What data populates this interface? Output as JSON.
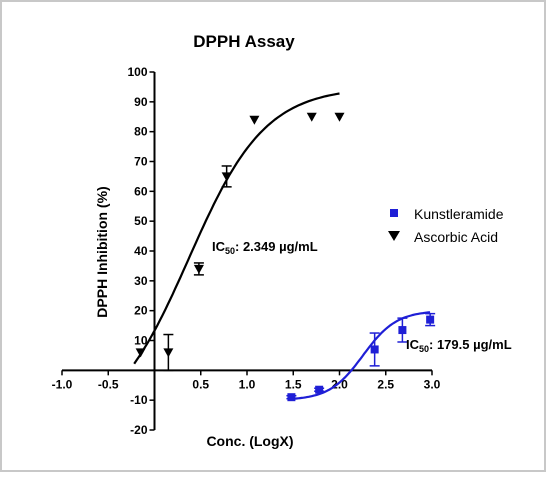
{
  "chart_data": {
    "type": "scatter",
    "title": "DPPH Assay",
    "xlabel": "Conc. (LogX)",
    "ylabel": "DPPH Inhibition (%)",
    "xlim": [
      -1.0,
      3.0
    ],
    "ylim": [
      -20,
      100
    ],
    "x_ticks": [
      "-1.0",
      "-0.5",
      "0.5",
      "1.0",
      "1.5",
      "2.0",
      "2.5",
      "3.0"
    ],
    "y_ticks": [
      "-20",
      "-10",
      "10",
      "20",
      "30",
      "40",
      "50",
      "60",
      "70",
      "80",
      "90",
      "100"
    ],
    "grid": false,
    "legend_position": "right",
    "series": [
      {
        "name": "Kunstleramide",
        "marker": "square",
        "color": "#1f1fd6",
        "x": [
          1.48,
          1.78,
          2.38,
          2.68,
          2.98
        ],
        "y": [
          -9,
          -6.5,
          7,
          13.5,
          17
        ],
        "err": [
          0.5,
          0.5,
          5.5,
          4,
          2
        ],
        "fit": {
          "bottom": -10,
          "top": 20,
          "logec50": 2.254,
          "hill": 2.4
        }
      },
      {
        "name": "Ascorbic Acid",
        "marker": "triangle-down",
        "color": "#000000",
        "x": [
          -0.15,
          0.15,
          0.48,
          0.78,
          1.08,
          1.7,
          2.0
        ],
        "y": [
          6,
          6,
          34,
          65,
          84,
          85,
          85
        ],
        "err": [
          0,
          6,
          2,
          3.5,
          0,
          0,
          0
        ],
        "fit": {
          "bottom": -20,
          "top": 95,
          "logec50": 0.371,
          "hill": 1.05
        }
      }
    ],
    "annotations": {
      "ascorbic": {
        "prefix": "IC",
        "sub": "50",
        "value": ": 2.349 µg/mL"
      },
      "kunstleramide": {
        "prefix": "IC",
        "sub": "50",
        "value": ": 179.5 µg/mL"
      }
    }
  }
}
